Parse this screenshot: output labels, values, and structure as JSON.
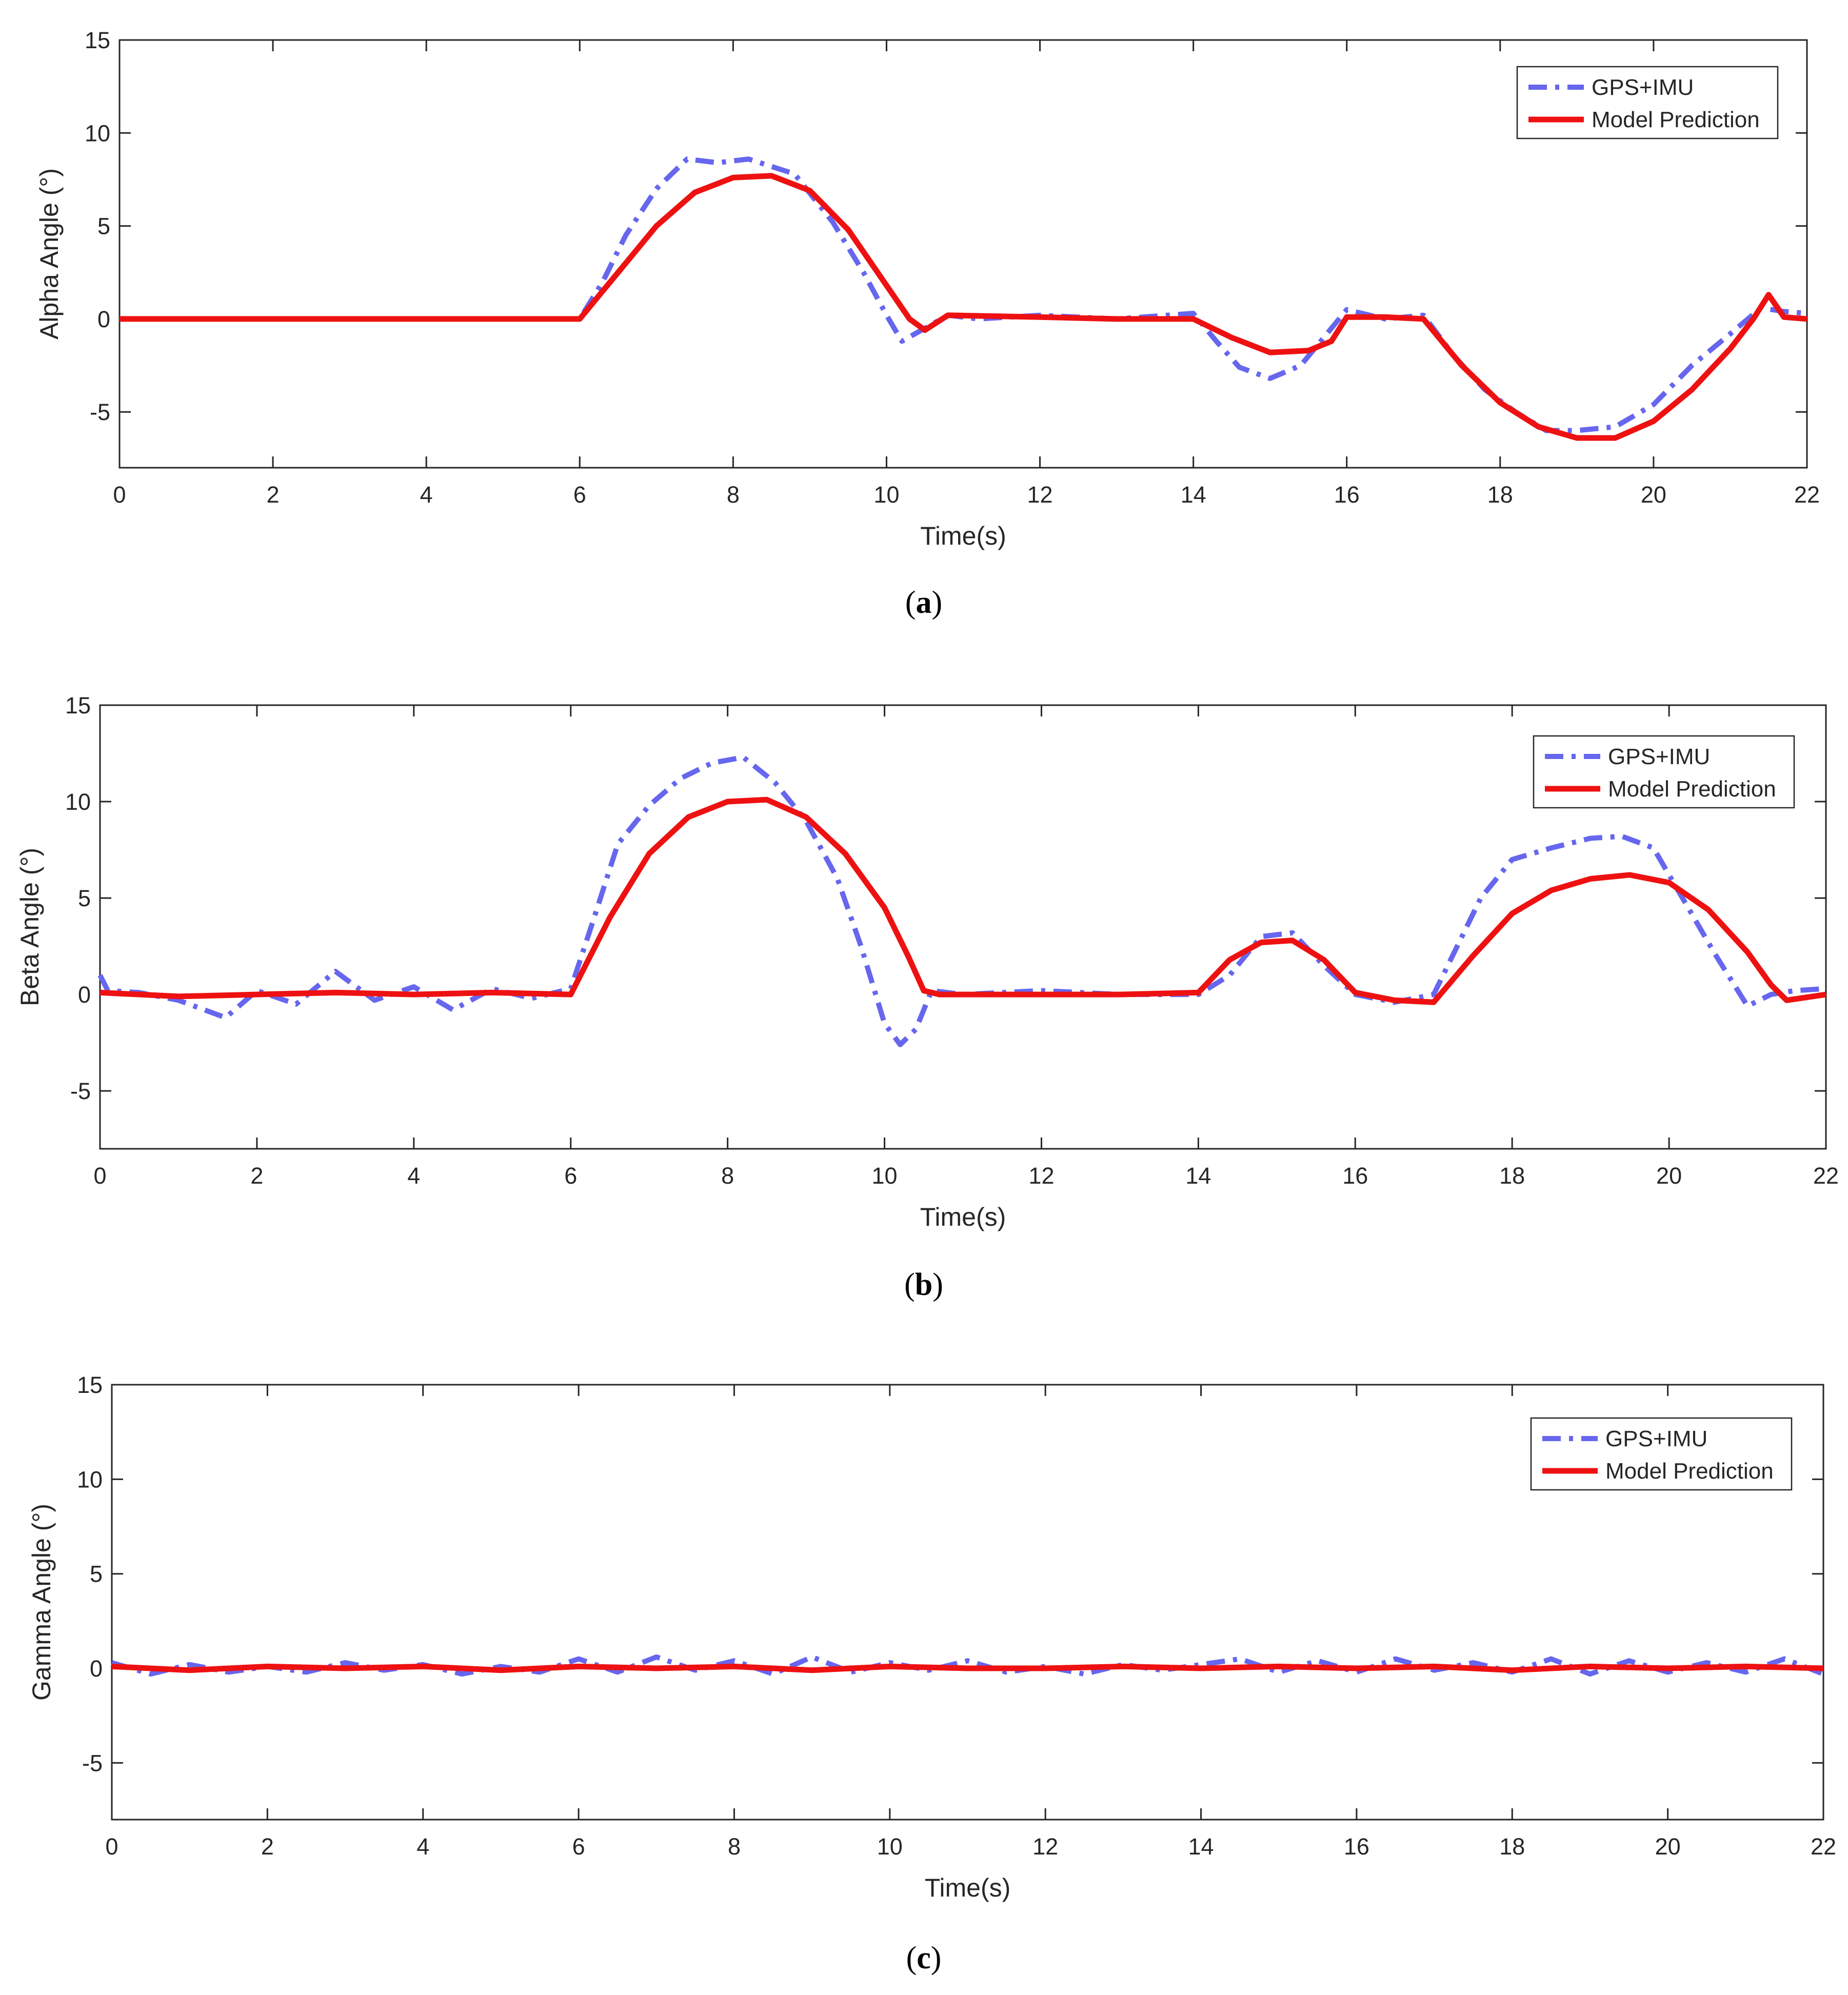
{
  "figure": {
    "colors": {
      "gps_imu": "#6666ee",
      "model_prediction": "#ee1111",
      "axis": "#262626"
    }
  },
  "chart_data": [
    {
      "panel": "a",
      "caption": {
        "open": "(",
        "letter": "a",
        "close": ")"
      },
      "type": "line",
      "xlabel": "Time(s)",
      "ylabel": "Alpha Angle (°)",
      "xlim": [
        0,
        22
      ],
      "ylim": [
        -8,
        15
      ],
      "xticks": [
        0,
        2,
        4,
        6,
        8,
        10,
        12,
        14,
        16,
        18,
        20,
        22
      ],
      "yticks": [
        -5,
        0,
        5,
        10,
        15
      ],
      "grid": false,
      "legend_position": "top-right",
      "series": [
        {
          "name": "GPS+IMU",
          "style": "dash-dot",
          "x": [
            0,
            6.0,
            6.3,
            6.6,
            7.0,
            7.4,
            7.8,
            8.2,
            8.8,
            9.3,
            9.7,
            10.0,
            10.2,
            10.5,
            10.8,
            11.2,
            12,
            13,
            14.0,
            14.3,
            14.6,
            15.0,
            15.4,
            15.7,
            16.0,
            16.5,
            17.0,
            17.4,
            17.8,
            18.2,
            18.6,
            19.0,
            19.5,
            20.0,
            20.5,
            21.0,
            21.4,
            21.7,
            22
          ],
          "y": [
            0,
            0,
            2.0,
            4.5,
            7.0,
            8.6,
            8.4,
            8.6,
            7.8,
            5.2,
            2.5,
            0.2,
            -1.2,
            -0.5,
            0.2,
            0,
            0.2,
            0,
            0.3,
            -1.2,
            -2.6,
            -3.2,
            -2.5,
            -1.0,
            0.5,
            0,
            0.2,
            -2.0,
            -3.8,
            -5.0,
            -6.0,
            -6.0,
            -5.8,
            -4.6,
            -2.5,
            -0.8,
            0.6,
            0.4,
            0.3
          ]
        },
        {
          "name": "Model Prediction",
          "style": "solid",
          "x": [
            0,
            6.0,
            6.5,
            7.0,
            7.5,
            8.0,
            8.5,
            9.0,
            9.5,
            10.0,
            10.3,
            10.5,
            10.8,
            12,
            13,
            14.0,
            14.5,
            15.0,
            15.5,
            15.8,
            16.0,
            16.5,
            17.0,
            17.5,
            18.0,
            18.5,
            19.0,
            19.5,
            20.0,
            20.5,
            21.0,
            21.3,
            21.5,
            21.7,
            22
          ],
          "y": [
            0,
            0,
            2.5,
            5.0,
            6.8,
            7.6,
            7.7,
            6.9,
            4.8,
            1.8,
            0.0,
            -0.6,
            0.2,
            0.1,
            0,
            0,
            -1.0,
            -1.8,
            -1.7,
            -1.2,
            0.1,
            0.1,
            0.0,
            -2.5,
            -4.5,
            -5.8,
            -6.4,
            -6.4,
            -5.5,
            -3.8,
            -1.6,
            0.0,
            1.3,
            0.1,
            0
          ]
        }
      ]
    },
    {
      "panel": "b",
      "caption": {
        "open": "(",
        "letter": "b",
        "close": ")"
      },
      "type": "line",
      "xlabel": "Time(s)",
      "ylabel": "Beta Angle (°)",
      "xlim": [
        0,
        22
      ],
      "ylim": [
        -8,
        15
      ],
      "xticks": [
        0,
        2,
        4,
        6,
        8,
        10,
        12,
        14,
        16,
        18,
        20,
        22
      ],
      "yticks": [
        -5,
        0,
        5,
        10,
        15
      ],
      "grid": false,
      "legend_position": "top-right",
      "series": [
        {
          "name": "GPS+IMU",
          "style": "dash-dot",
          "x": [
            0,
            0.1,
            0.5,
            1.0,
            1.6,
            2.0,
            2.5,
            3.0,
            3.5,
            4.0,
            4.5,
            5.0,
            5.5,
            6.0,
            6.3,
            6.6,
            7.0,
            7.4,
            7.8,
            8.2,
            8.6,
            9.0,
            9.4,
            9.7,
            10.0,
            10.2,
            10.4,
            10.6,
            11.0,
            12,
            13,
            14.0,
            14.4,
            14.8,
            15.2,
            15.6,
            16.0,
            16.5,
            17.0,
            17.3,
            17.6,
            18.0,
            18.5,
            19.0,
            19.4,
            19.8,
            20.2,
            20.6,
            21.0,
            21.3,
            21.6,
            22
          ],
          "y": [
            1.0,
            0.2,
            0.1,
            -0.3,
            -1.2,
            0.2,
            -0.5,
            1.2,
            -0.3,
            0.4,
            -0.8,
            0.3,
            -0.2,
            0.3,
            4.0,
            7.8,
            9.8,
            11.2,
            12.0,
            12.3,
            11.0,
            9.0,
            6.0,
            2.5,
            -1.5,
            -2.6,
            -1.8,
            0.2,
            0,
            0.2,
            0,
            0,
            1.0,
            3.0,
            3.2,
            1.5,
            0,
            -0.4,
            0,
            2.5,
            5.0,
            7.0,
            7.6,
            8.1,
            8.2,
            7.6,
            4.8,
            2.0,
            -0.6,
            0,
            0.2,
            0.3
          ]
        },
        {
          "name": "Model Prediction",
          "style": "solid",
          "x": [
            0,
            1,
            2,
            3,
            4,
            5,
            6.0,
            6.5,
            7.0,
            7.5,
            8.0,
            8.5,
            9.0,
            9.5,
            10.0,
            10.3,
            10.5,
            10.7,
            12,
            13,
            14.0,
            14.4,
            14.8,
            15.2,
            15.6,
            16.0,
            16.5,
            17.0,
            17.5,
            18.0,
            18.5,
            19.0,
            19.5,
            20.0,
            20.5,
            21.0,
            21.3,
            21.5,
            22
          ],
          "y": [
            0.1,
            -0.1,
            0.0,
            0.1,
            0.0,
            0.1,
            0,
            4.0,
            7.3,
            9.2,
            10.0,
            10.1,
            9.2,
            7.3,
            4.5,
            2.0,
            0.2,
            0,
            0,
            0,
            0.1,
            1.8,
            2.7,
            2.8,
            1.8,
            0.1,
            -0.3,
            -0.4,
            2.0,
            4.2,
            5.4,
            6.0,
            6.2,
            5.8,
            4.4,
            2.2,
            0.5,
            -0.3,
            0
          ]
        }
      ]
    },
    {
      "panel": "c",
      "caption": {
        "open": "(",
        "letter": "c",
        "close": ")"
      },
      "type": "line",
      "xlabel": "Time(s)",
      "ylabel": "Gamma Angle (°)",
      "xlim": [
        0,
        22
      ],
      "ylim": [
        -8,
        15
      ],
      "xticks": [
        0,
        2,
        4,
        6,
        8,
        10,
        12,
        14,
        16,
        18,
        20,
        22
      ],
      "yticks": [
        -5,
        0,
        5,
        10,
        15
      ],
      "grid": false,
      "legend_position": "top-right",
      "series": [
        {
          "name": "GPS+IMU",
          "style": "dash-dot",
          "x": [
            0,
            0.5,
            1,
            1.5,
            2,
            2.5,
            3,
            3.5,
            4,
            4.5,
            5,
            5.5,
            6,
            6.5,
            7,
            7.5,
            8,
            8.5,
            9,
            9.5,
            10,
            10.5,
            11,
            11.5,
            12,
            12.5,
            13,
            13.5,
            14,
            14.5,
            15,
            15.5,
            16,
            16.5,
            17,
            17.5,
            18,
            18.5,
            19,
            19.5,
            20,
            20.5,
            21,
            21.5,
            22
          ],
          "y": [
            0.3,
            -0.3,
            0.2,
            -0.2,
            0.1,
            -0.2,
            0.3,
            -0.1,
            0.2,
            -0.3,
            0.1,
            -0.2,
            0.5,
            -0.2,
            0.6,
            -0.1,
            0.4,
            -0.3,
            0.6,
            -0.2,
            0.3,
            -0.1,
            0.4,
            -0.2,
            0.1,
            -0.3,
            0.2,
            -0.1,
            0.2,
            0.5,
            -0.2,
            0.4,
            -0.2,
            0.5,
            -0.1,
            0.3,
            -0.2,
            0.5,
            -0.3,
            0.4,
            -0.2,
            0.3,
            -0.2,
            0.5,
            -0.3
          ]
        },
        {
          "name": "Model Prediction",
          "style": "solid",
          "x": [
            0,
            1,
            2,
            3,
            4,
            5,
            6,
            7,
            8,
            9,
            10,
            11,
            12,
            13,
            14,
            15,
            16,
            17,
            18,
            19,
            20,
            21,
            22
          ],
          "y": [
            0.1,
            -0.1,
            0.1,
            0.0,
            0.1,
            -0.1,
            0.1,
            0.0,
            0.1,
            -0.1,
            0.1,
            0.0,
            0.0,
            0.1,
            0.0,
            0.1,
            0.0,
            0.1,
            -0.1,
            0.1,
            0.0,
            0.1,
            0.0
          ]
        }
      ]
    }
  ]
}
